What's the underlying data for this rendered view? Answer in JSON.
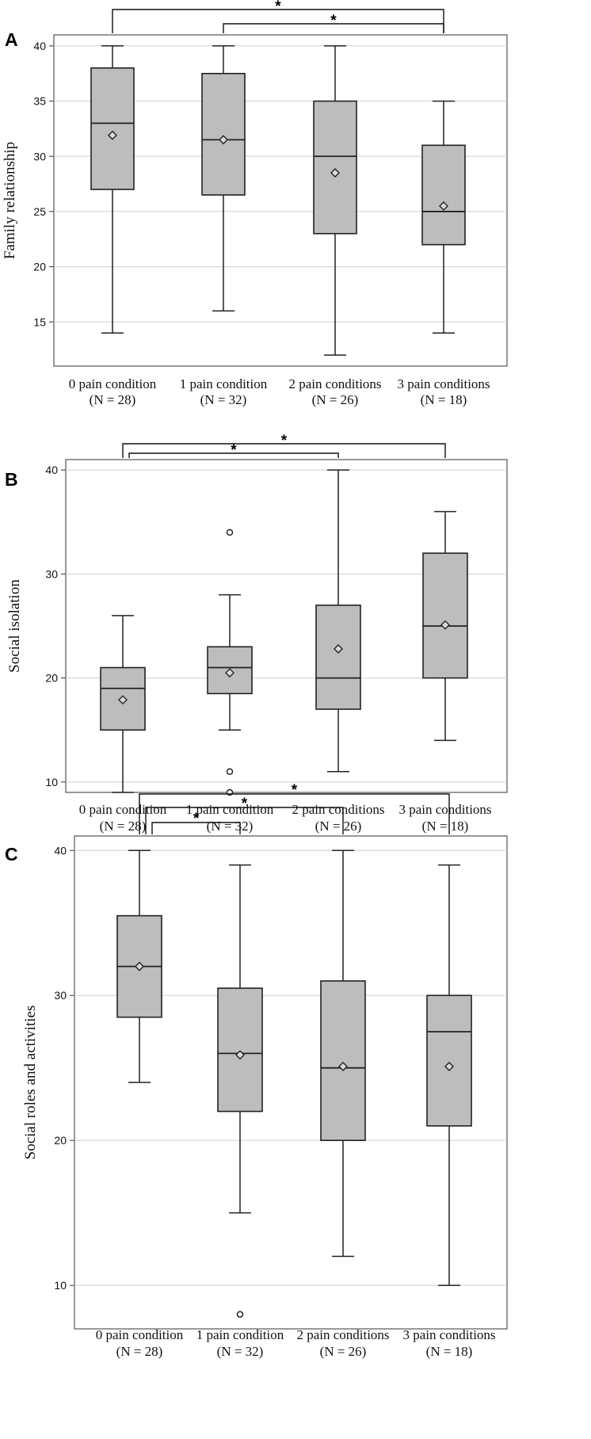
{
  "chart_data": [
    {
      "type": "box",
      "panel": "A",
      "ylabel": "Family relationship",
      "ylim": [
        11,
        41
      ],
      "yticks": [
        15,
        20,
        25,
        30,
        35,
        40
      ],
      "grid": true,
      "categories": [
        {
          "name": "0 pain condition",
          "n": "(N = 28)",
          "min": 14,
          "q1": 27,
          "median": 33,
          "q3": 38,
          "max": 40,
          "mean": 31.9,
          "outliers": []
        },
        {
          "name": "1 pain condition",
          "n": "(N = 32)",
          "min": 16,
          "q1": 26.5,
          "median": 31.5,
          "q3": 37.5,
          "max": 40,
          "mean": 31.5,
          "outliers": []
        },
        {
          "name": "2 pain conditions",
          "n": "(N = 26)",
          "min": 12,
          "q1": 23,
          "median": 30,
          "q3": 35,
          "max": 40,
          "mean": 28.5,
          "outliers": []
        },
        {
          "name": "3 pain conditions",
          "n": "(N = 18)",
          "min": 14,
          "q1": 22,
          "median": 25,
          "q3": 31,
          "max": 35,
          "mean": 25.5,
          "outliers": []
        }
      ],
      "significance": [
        {
          "from": 0,
          "to": 3,
          "label": "*"
        },
        {
          "from": 1,
          "to": 3,
          "label": "*"
        }
      ]
    },
    {
      "type": "box",
      "panel": "B",
      "ylabel": "Social isolation",
      "ylim": [
        9,
        41
      ],
      "yticks": [
        10,
        20,
        30,
        40
      ],
      "grid": true,
      "categories": [
        {
          "name": "0 pain condition",
          "n": "(N = 28)",
          "min": 9,
          "q1": 15,
          "median": 19,
          "q3": 21,
          "max": 26,
          "mean": 17.9,
          "outliers": []
        },
        {
          "name": "1 pain condition",
          "n": "(N = 32)",
          "min": 15,
          "q1": 18.5,
          "median": 21,
          "q3": 23,
          "max": 28,
          "mean": 20.5,
          "outliers": [
            34,
            11,
            9
          ]
        },
        {
          "name": "2 pain conditions",
          "n": "(N = 26)",
          "min": 11,
          "q1": 17,
          "median": 20,
          "q3": 27,
          "max": 40,
          "mean": 22.8,
          "outliers": []
        },
        {
          "name": "3 pain conditions",
          "n": "(N = 18)",
          "min": 14,
          "q1": 20,
          "median": 25,
          "q3": 32,
          "max": 36,
          "mean": 25.1,
          "outliers": []
        }
      ],
      "significance": [
        {
          "from": 0,
          "to": 3,
          "label": "*"
        },
        {
          "from": 0,
          "to": 2,
          "label": "*"
        }
      ]
    },
    {
      "type": "box",
      "panel": "C",
      "ylabel": "Social roles and activities",
      "ylim": [
        7,
        41
      ],
      "yticks": [
        10,
        20,
        30,
        40
      ],
      "grid": true,
      "categories": [
        {
          "name": "0 pain condition",
          "n": "(N = 28)",
          "min": 24,
          "q1": 28.5,
          "median": 32,
          "q3": 35.5,
          "max": 40,
          "mean": 32,
          "outliers": []
        },
        {
          "name": "1 pain condition",
          "n": "(N = 32)",
          "min": 15,
          "q1": 22,
          "median": 26,
          "q3": 30.5,
          "max": 39,
          "mean": 25.9,
          "outliers": [
            8
          ]
        },
        {
          "name": "2 pain conditions",
          "n": "(N = 26)",
          "min": 12,
          "q1": 20,
          "median": 25,
          "q3": 31,
          "max": 40,
          "mean": 25.1,
          "outliers": []
        },
        {
          "name": "3 pain conditions",
          "n": "(N = 18)",
          "min": 10,
          "q1": 21,
          "median": 27.5,
          "q3": 30,
          "max": 39,
          "mean": 25.1,
          "outliers": []
        }
      ],
      "significance": [
        {
          "from": 0,
          "to": 3,
          "label": "*"
        },
        {
          "from": 0,
          "to": 2,
          "label": "*"
        },
        {
          "from": 0,
          "to": 1,
          "label": "*"
        }
      ]
    }
  ]
}
